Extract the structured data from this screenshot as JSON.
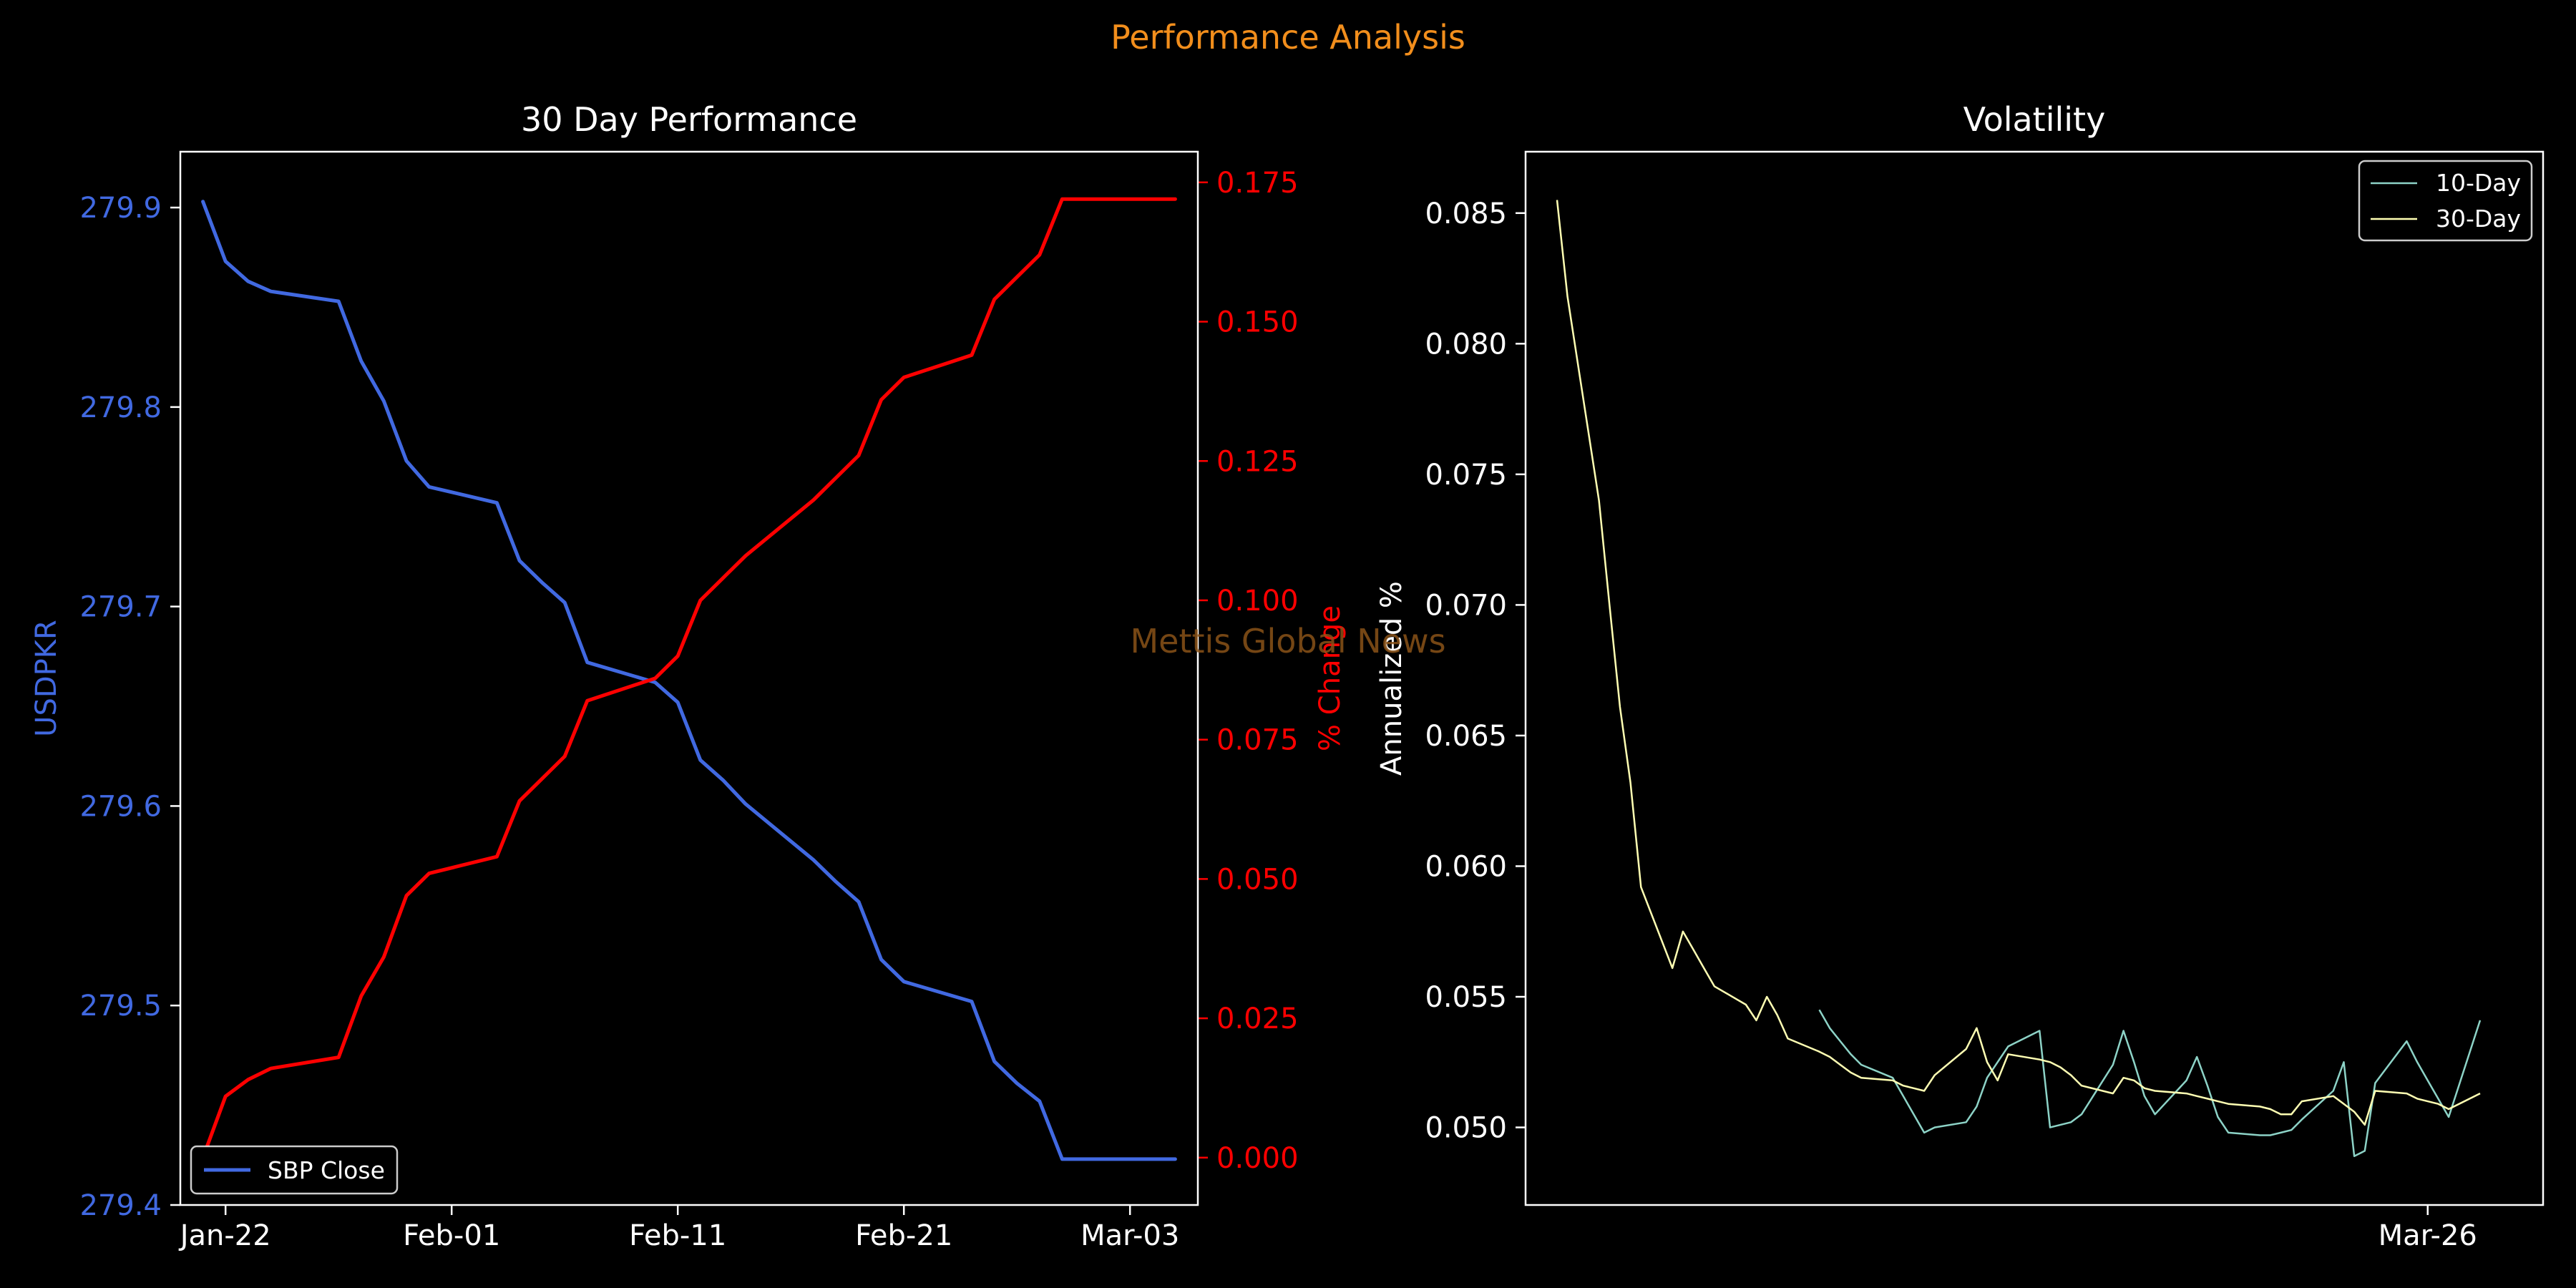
{
  "figure": {
    "title": "Performance Analysis",
    "watermark": "Mettis Global News",
    "background": "#000000",
    "title_color": "#f28e1c",
    "watermark_color": "#8a5217"
  },
  "chart_data": [
    {
      "type": "line",
      "title": "30 Day Performance",
      "x_type": "date",
      "x": [
        "2025-01-21",
        "2025-01-22",
        "2025-01-23",
        "2025-01-24",
        "2025-01-27",
        "2025-01-28",
        "2025-01-29",
        "2025-01-30",
        "2025-01-31",
        "2025-02-03",
        "2025-02-04",
        "2025-02-05",
        "2025-02-06",
        "2025-02-07",
        "2025-02-10",
        "2025-02-11",
        "2025-02-12",
        "2025-02-13",
        "2025-02-14",
        "2025-02-17",
        "2025-02-18",
        "2025-02-19",
        "2025-02-20",
        "2025-02-21",
        "2025-02-24",
        "2025-02-25",
        "2025-02-26",
        "2025-02-27",
        "2025-02-28",
        "2025-03-03",
        "2025-03-04",
        "2025-03-05"
      ],
      "x_ticks": [
        {
          "date": "2025-01-22",
          "label": "Jan-22"
        },
        {
          "date": "2025-02-01",
          "label": "Feb-01"
        },
        {
          "date": "2025-02-11",
          "label": "Feb-11"
        },
        {
          "date": "2025-02-21",
          "label": "Feb-21"
        },
        {
          "date": "2025-03-03",
          "label": "Mar-03"
        }
      ],
      "xlim": [
        "2025-01-20",
        "2025-03-06"
      ],
      "series": [
        {
          "name": "SBP Close",
          "axis": "left",
          "color": "#4169e1",
          "values": [
            279.903,
            279.873,
            279.863,
            279.858,
            279.853,
            279.823,
            279.803,
            279.773,
            279.76,
            279.752,
            279.723,
            279.712,
            279.702,
            279.672,
            279.662,
            279.652,
            279.623,
            279.613,
            279.601,
            279.573,
            279.562,
            279.552,
            279.523,
            279.512,
            279.502,
            279.472,
            279.461,
            279.452,
            279.423,
            279.423,
            279.423,
            279.423
          ]
        },
        {
          "axis": "right",
          "color": "#ff0000",
          "values": [
            0.0,
            0.011,
            0.014,
            0.016,
            0.018,
            0.029,
            0.036,
            0.047,
            0.051,
            0.054,
            0.064,
            0.068,
            0.072,
            0.082,
            0.086,
            0.09,
            0.1,
            0.104,
            0.108,
            0.118,
            0.122,
            0.126,
            0.136,
            0.14,
            0.144,
            0.154,
            0.158,
            0.162,
            0.172,
            0.172,
            0.172,
            0.172
          ]
        }
      ],
      "y_left": {
        "label": "USDPKR",
        "color": "#4169e1",
        "ticks": [
          279.4,
          279.5,
          279.6,
          279.7,
          279.8,
          279.9
        ],
        "tick_labels": [
          "279.4",
          "279.5",
          "279.6",
          "279.7",
          "279.8",
          "279.9"
        ],
        "ylim": [
          279.4,
          279.928
        ]
      },
      "y_right": {
        "label": "% Change",
        "color": "#ff0000",
        "ticks": [
          0.0,
          0.025,
          0.05,
          0.075,
          0.1,
          0.125,
          0.15,
          0.175
        ],
        "tick_labels": [
          "0.000",
          "0.025",
          "0.050",
          "0.075",
          "0.100",
          "0.125",
          "0.150",
          "0.175"
        ],
        "ylim": [
          -0.0085,
          0.1805
        ]
      },
      "legend": {
        "position": "lower-left",
        "entries": [
          "SBP Close"
        ]
      },
      "grid": false
    },
    {
      "type": "line",
      "title": "Volatility",
      "x_type": "date",
      "xlim": [
        "2024-12-30",
        "2025-04-06"
      ],
      "x_ticks": [
        {
          "date": "2025-03-26",
          "label": "Mar-26"
        }
      ],
      "ylabel": "Annualized %",
      "y_ticks": [
        0.05,
        0.055,
        0.06,
        0.065,
        0.07,
        0.075,
        0.08,
        0.085
      ],
      "y_tick_labels": [
        "0.050",
        "0.055",
        "0.060",
        "0.065",
        "0.070",
        "0.075",
        "0.080",
        "0.085"
      ],
      "ylim": [
        0.04703,
        0.08735
      ],
      "series": [
        {
          "name": "10-Day",
          "color": "#8dd3c7",
          "x": [
            "2025-01-27",
            "2025-01-28",
            "2025-01-29",
            "2025-01-30",
            "2025-01-31",
            "2025-02-03",
            "2025-02-04",
            "2025-02-05",
            "2025-02-06",
            "2025-02-07",
            "2025-02-10",
            "2025-02-11",
            "2025-02-12",
            "2025-02-13",
            "2025-02-14",
            "2025-02-17",
            "2025-02-18",
            "2025-02-19",
            "2025-02-20",
            "2025-02-21",
            "2025-02-24",
            "2025-02-25",
            "2025-02-26",
            "2025-02-27",
            "2025-02-28",
            "2025-03-03",
            "2025-03-04",
            "2025-03-05",
            "2025-03-06",
            "2025-03-07",
            "2025-03-10",
            "2025-03-11",
            "2025-03-12",
            "2025-03-13",
            "2025-03-14",
            "2025-03-17",
            "2025-03-18",
            "2025-03-19",
            "2025-03-20",
            "2025-03-21",
            "2025-03-24",
            "2025-03-25",
            "2025-03-26",
            "2025-03-27",
            "2025-03-28",
            "2025-03-31"
          ],
          "values": [
            0.0545,
            0.0538,
            0.0533,
            0.0528,
            0.0524,
            0.0519,
            0.0512,
            0.0505,
            0.0498,
            0.05,
            0.0502,
            0.0508,
            0.0519,
            0.0525,
            0.0531,
            0.0537,
            0.05,
            0.0501,
            0.0502,
            0.0505,
            0.0524,
            0.0537,
            0.0525,
            0.0512,
            0.0505,
            0.0518,
            0.0527,
            0.0516,
            0.0504,
            0.0498,
            0.0497,
            0.0497,
            0.0498,
            0.0499,
            0.0503,
            0.0514,
            0.0525,
            0.0489,
            0.0491,
            0.0517,
            0.0533,
            0.0525,
            0.0518,
            0.0511,
            0.0504,
            0.0541
          ]
        },
        {
          "name": "30-Day",
          "color": "#ffffb3",
          "x": [
            "2025-01-02",
            "2025-01-03",
            "2025-01-06",
            "2025-01-07",
            "2025-01-08",
            "2025-01-09",
            "2025-01-10",
            "2025-01-13",
            "2025-01-14",
            "2025-01-15",
            "2025-01-16",
            "2025-01-17",
            "2025-01-20",
            "2025-01-21",
            "2025-01-22",
            "2025-01-23",
            "2025-01-24",
            "2025-01-27",
            "2025-01-28",
            "2025-01-29",
            "2025-01-30",
            "2025-01-31",
            "2025-02-03",
            "2025-02-04",
            "2025-02-05",
            "2025-02-06",
            "2025-02-07",
            "2025-02-10",
            "2025-02-11",
            "2025-02-12",
            "2025-02-13",
            "2025-02-14",
            "2025-02-17",
            "2025-02-18",
            "2025-02-19",
            "2025-02-20",
            "2025-02-21",
            "2025-02-24",
            "2025-02-25",
            "2025-02-26",
            "2025-02-27",
            "2025-02-28",
            "2025-03-03",
            "2025-03-04",
            "2025-03-05",
            "2025-03-06",
            "2025-03-07",
            "2025-03-10",
            "2025-03-11",
            "2025-03-12",
            "2025-03-13",
            "2025-03-14",
            "2025-03-17",
            "2025-03-18",
            "2025-03-19",
            "2025-03-20",
            "2025-03-21",
            "2025-03-24",
            "2025-03-25",
            "2025-03-26",
            "2025-03-27",
            "2025-03-28",
            "2025-03-31"
          ],
          "values": [
            0.0855,
            0.0818,
            0.074,
            0.07,
            0.0661,
            0.0632,
            0.0592,
            0.0561,
            0.0575,
            0.0568,
            0.0561,
            0.0554,
            0.0547,
            0.0541,
            0.055,
            0.0543,
            0.0534,
            0.0529,
            0.0527,
            0.0524,
            0.0521,
            0.0519,
            0.0518,
            0.0516,
            0.0515,
            0.0514,
            0.052,
            0.053,
            0.0538,
            0.0525,
            0.0518,
            0.0528,
            0.0526,
            0.0525,
            0.0523,
            0.052,
            0.0516,
            0.0513,
            0.0519,
            0.0518,
            0.0515,
            0.0514,
            0.0513,
            0.0512,
            0.0511,
            0.051,
            0.0509,
            0.0508,
            0.0507,
            0.0505,
            0.0505,
            0.051,
            0.0512,
            0.0509,
            0.0506,
            0.0501,
            0.0514,
            0.0513,
            0.0511,
            0.051,
            0.0509,
            0.0507,
            0.0513
          ]
        }
      ],
      "legend": {
        "position": "top-right",
        "entries": [
          "10-Day",
          "30-Day"
        ]
      },
      "grid": false
    }
  ]
}
